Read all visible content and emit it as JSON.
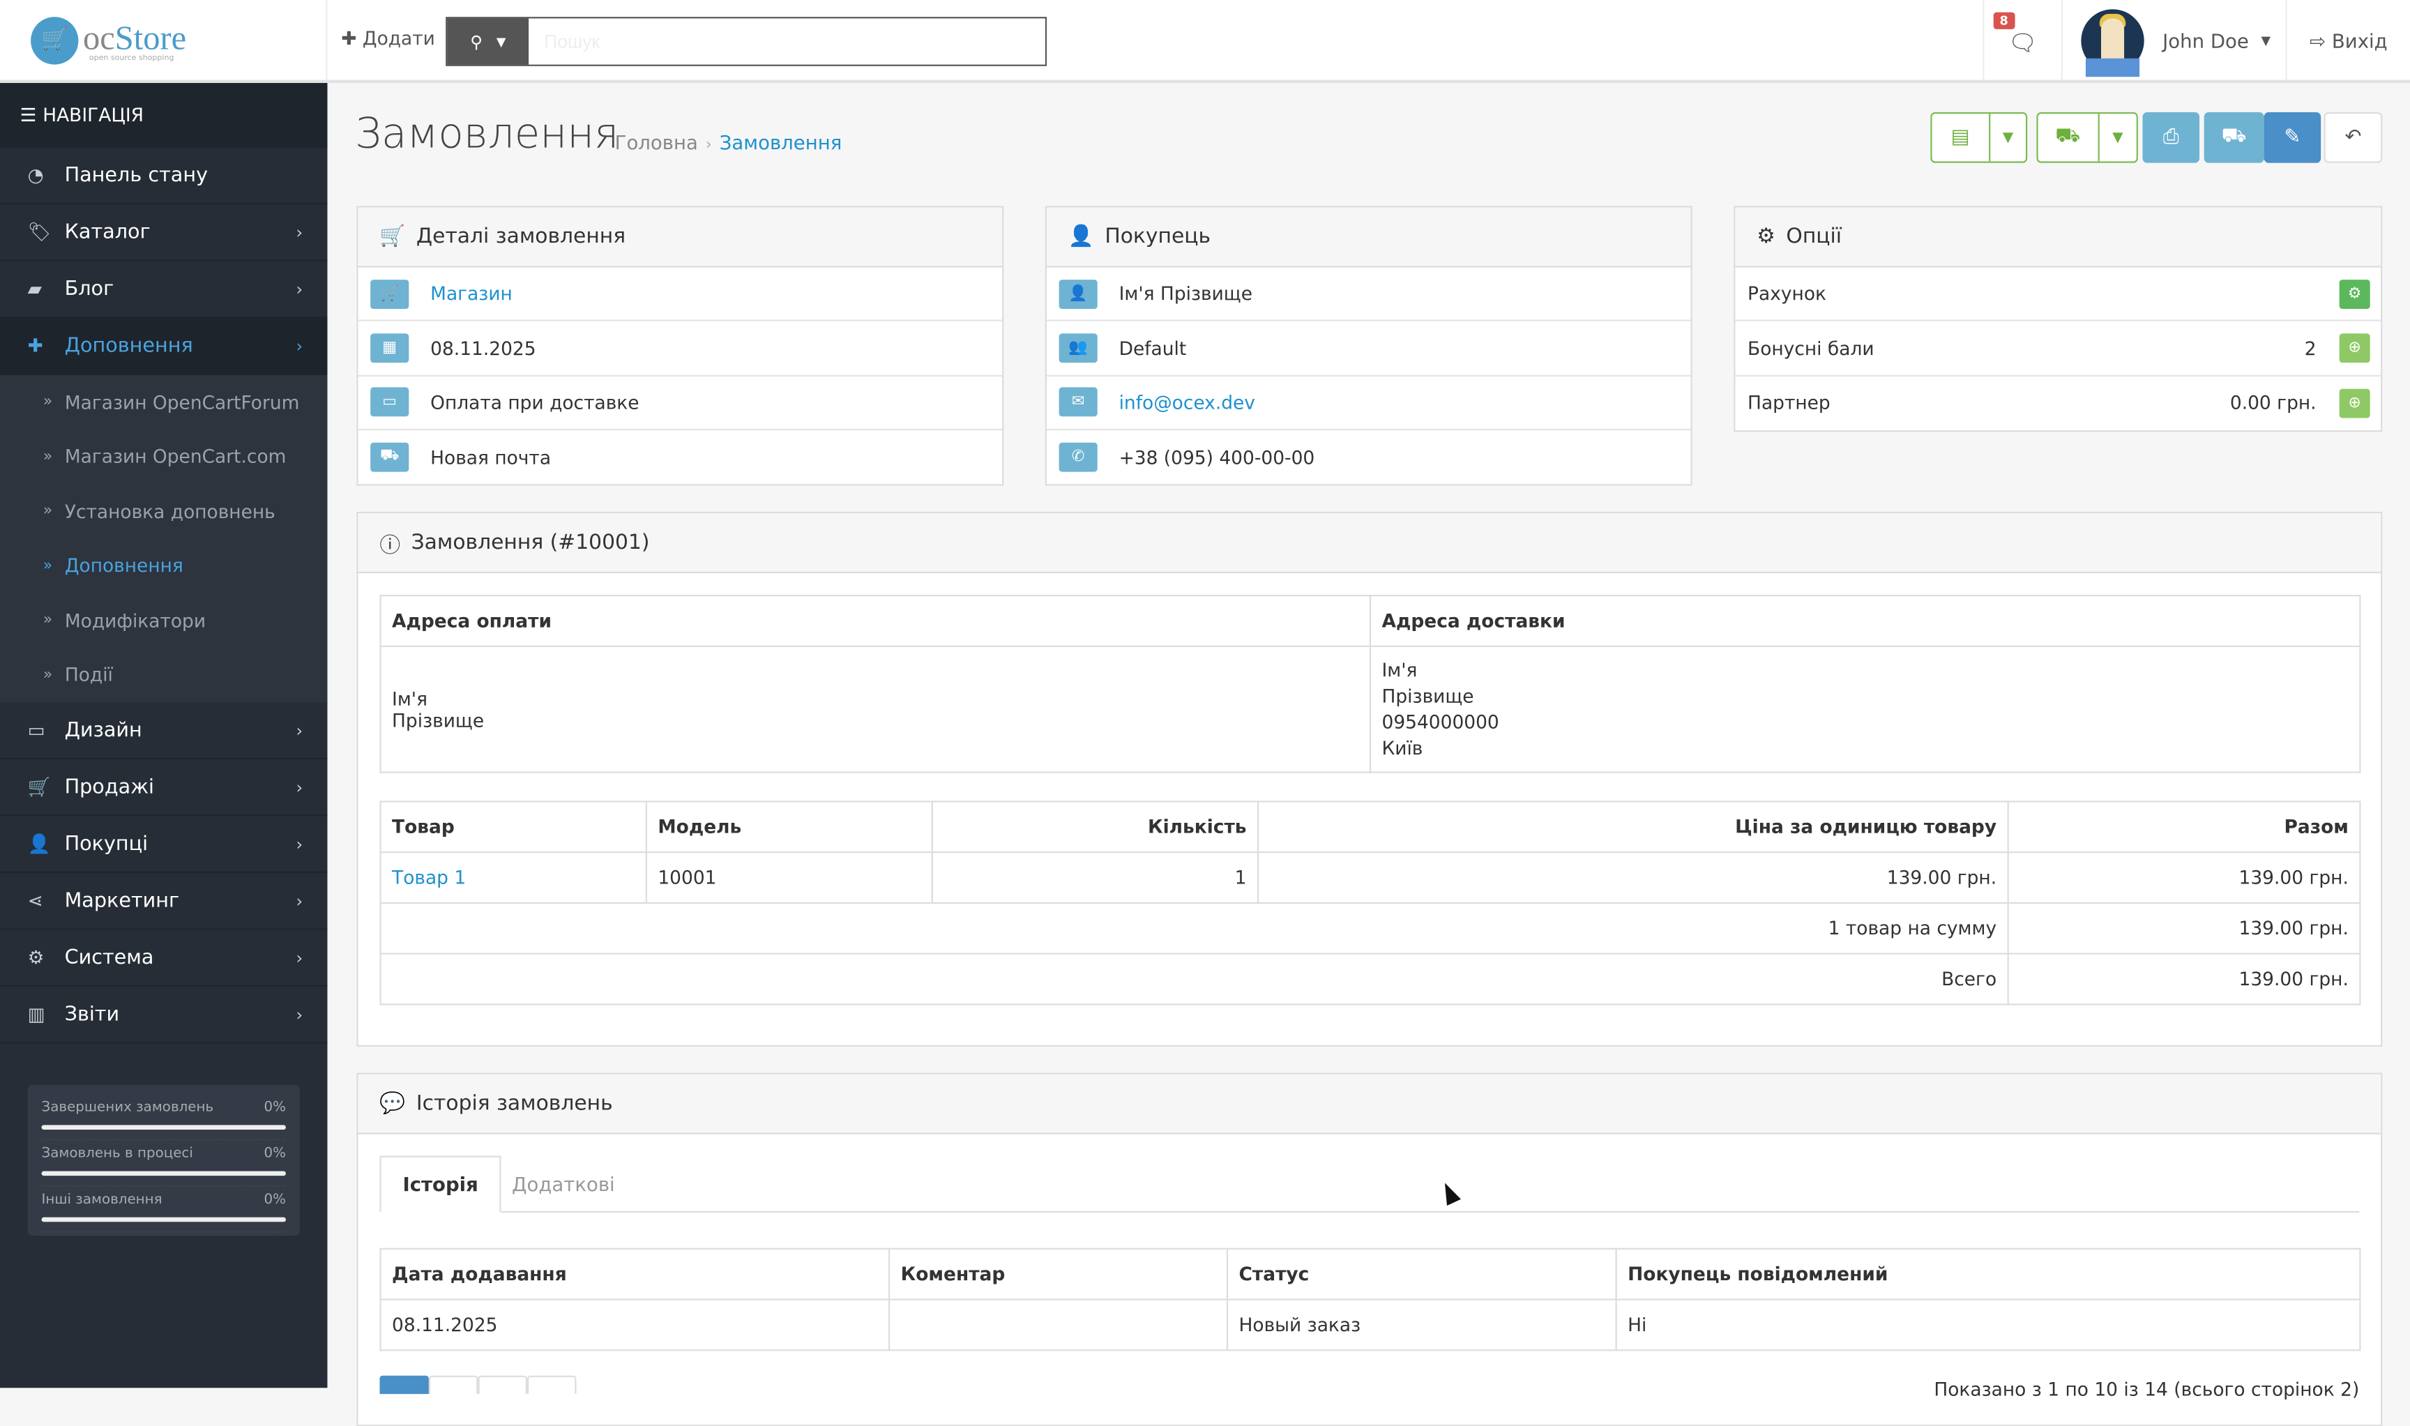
{
  "header": {
    "logo": "ocStore",
    "logo_prefix": "oc",
    "logo_suffix": "Store",
    "logo_tagline": "open source shopping",
    "add_label": "Додати",
    "search_placeholder": "Пошук",
    "notification_count": "8",
    "user_name": "John Doe",
    "logout_label": "Вихід"
  },
  "sidebar": {
    "nav_title": "НАВІГАЦІЯ",
    "items": [
      {
        "label": "Панель стану",
        "icon": "dashboard-icon",
        "chevron": false
      },
      {
        "label": "Каталог",
        "icon": "tags-icon",
        "chevron": true
      },
      {
        "label": "Блог",
        "icon": "book-icon",
        "chevron": true
      },
      {
        "label": "Доповнення",
        "icon": "puzzle-icon",
        "chevron": true,
        "active": true
      },
      {
        "label": "Дизайн",
        "icon": "desktop-icon",
        "chevron": true
      },
      {
        "label": "Продажі",
        "icon": "cart-icon",
        "chevron": true
      },
      {
        "label": "Покупці",
        "icon": "user-icon",
        "chevron": true
      },
      {
        "label": "Маркетинг",
        "icon": "share-icon",
        "chevron": true
      },
      {
        "label": "Система",
        "icon": "cog-icon",
        "chevron": true
      },
      {
        "label": "Звіти",
        "icon": "bar-chart-icon",
        "chevron": true
      }
    ],
    "subitems": [
      {
        "label": "Магазин OpenCartForum"
      },
      {
        "label": "Магазин OpenCart.com"
      },
      {
        "label": "Установка доповнень"
      },
      {
        "label": "Доповнення",
        "active": true
      },
      {
        "label": "Модифікатори"
      },
      {
        "label": "Події"
      }
    ],
    "stats": [
      {
        "label": "Завершених замовлень",
        "value": "0%",
        "percent": 0
      },
      {
        "label": "Замовлень в процесі",
        "value": "0%",
        "percent": 0
      },
      {
        "label": "Інші замовлення",
        "value": "0%",
        "percent": 0
      }
    ]
  },
  "page": {
    "title": "Замовлення",
    "breadcrumb": [
      "Головна",
      "Замовлення"
    ]
  },
  "toolbar": {
    "colors": {
      "green": "#6cb03e",
      "info": "#6fb3d2",
      "primary": "#4a8fc8"
    }
  },
  "details": {
    "title": "Деталі замовлення",
    "store": "Магазин",
    "date": "08.11.2025",
    "payment": "Оплата при доставке",
    "shipping": "Новая почта"
  },
  "customer": {
    "title": "Покупець",
    "name": "Ім'я Прізвище",
    "group": "Default",
    "email": "info@ocex.dev",
    "phone": "+38 (095) 400-00-00"
  },
  "options": {
    "title": "Опції",
    "invoice_label": "Рахунок",
    "reward_label": "Бонусні бали",
    "reward_value": "2",
    "affiliate_label": "Партнер",
    "affiliate_value": "0.00 грн."
  },
  "order": {
    "title": "Замовлення (#10001)",
    "payment_address_header": "Адреса оплати",
    "shipping_address_header": "Адреса доставки",
    "payment_address": [
      "Ім'я",
      "Прізвище"
    ],
    "shipping_address": [
      "Ім'я",
      "Прізвище",
      "0954000000",
      "Київ"
    ],
    "columns": [
      "Товар",
      "Модель",
      "Кількість",
      "Ціна за одиницю товару",
      "Разом"
    ],
    "products": [
      {
        "name": "Товар 1",
        "model": "10001",
        "quantity": "1",
        "price": "139.00 грн.",
        "total": "139.00 грн."
      }
    ],
    "totals": [
      {
        "label": "1 товар на сумму",
        "value": "139.00 грн."
      },
      {
        "label": "Всего",
        "value": "139.00 грн."
      }
    ]
  },
  "history": {
    "title": "Історія замовлень",
    "tabs": [
      "Історія",
      "Додаткові"
    ],
    "columns": [
      "Дата додавання",
      "Коментар",
      "Статус",
      "Покупець повідомлений"
    ],
    "rows": [
      {
        "date": "08.11.2025",
        "comment": "",
        "status": "Новый заказ",
        "notified": "Ні"
      }
    ],
    "pagination_text": "Показано з 1 по 10 із 14 (всього сторінок 2)"
  }
}
